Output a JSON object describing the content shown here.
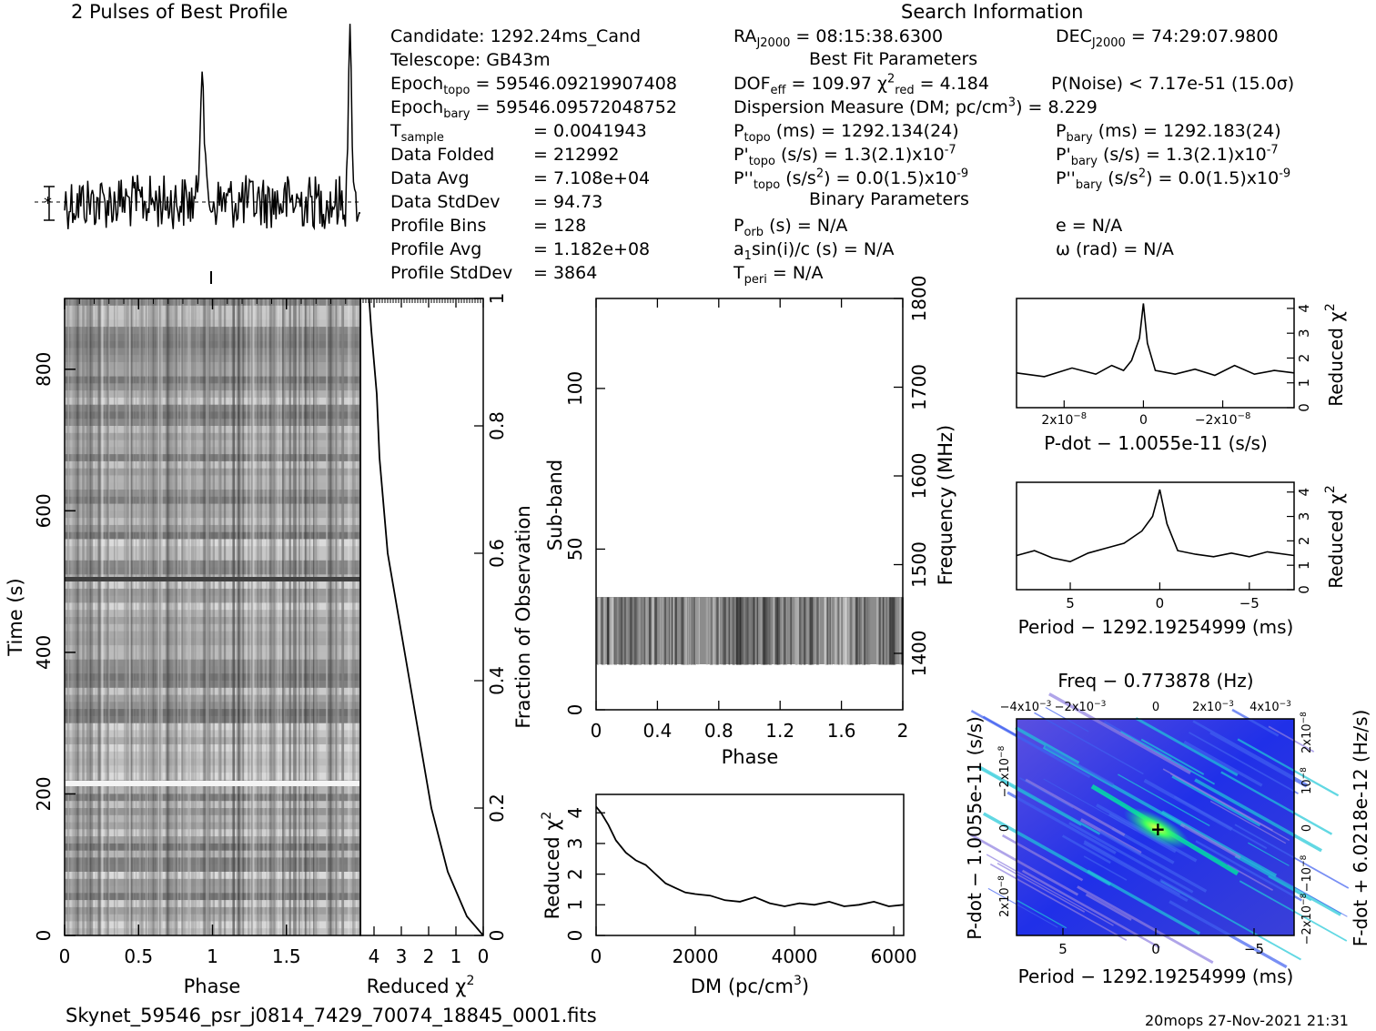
{
  "headers": {
    "profile_title": "2 Pulses of Best Profile",
    "search_title": "Search Information",
    "best_fit_title": "Best Fit Parameters",
    "binary_title": "Binary Parameters"
  },
  "info": {
    "candidate": "Candidate:  1292.24ms_Cand",
    "telescope": "Telescope:  GB43m",
    "epoch_topo_label": "Epoch",
    "epoch_topo_sub": "topo",
    "epoch_topo_value": " = 59546.09219907408",
    "epoch_bary_label": "Epoch",
    "epoch_bary_sub": "bary",
    "epoch_bary_value": " = 59546.09572048752",
    "tsample_label": "T",
    "tsample_sub": "sample",
    "tsample_value": "=   0.0041943",
    "data_folded_label": "Data Folded",
    "data_folded_value": "=   212992",
    "data_avg_label": "Data Avg",
    "data_avg_value": "=   7.108e+04",
    "data_std_label": "Data StdDev",
    "data_std_value": "=   94.73",
    "prof_bins_label": "Profile Bins",
    "prof_bins_value": "=   128",
    "prof_avg_label": "Profile Avg",
    "prof_avg_value": "=   1.182e+08",
    "prof_std_label": "Profile StdDev",
    "prof_std_value": "=   3864"
  },
  "search": {
    "ra_label": "RA",
    "ra_sub": "J2000",
    "ra_value": " = 08:15:38.6300",
    "dec_label": "DEC",
    "dec_sub": "J2000",
    "dec_value": " = 74:29:07.9800",
    "dof_label": "DOF",
    "dof_sub": "eff",
    "dof_value": " = 109.97  ",
    "chi_label": "χ",
    "chi_sup": "2",
    "chi_sub": "red",
    "chi_value": " = 4.184",
    "pnoise": "P(Noise) < 7.17e-51   (15.0σ)",
    "dm_text": "Dispersion Measure (DM; pc/cm",
    "dm_sup": "3",
    "dm_value": ") = 8.229",
    "ptopo_label": "P",
    "ptopo_sub": "topo",
    "ptopo_value": " (ms)  =   1292.134(24)",
    "pbary_label": "P",
    "pbary_sub": "bary",
    "pbary_value": " (ms)  =   1292.183(24)",
    "pdtopo_label": "P'",
    "pdtopo_sub": "topo",
    "pdtopo_value": " (s/s)  =   1.3(2.1)x10",
    "pdtopo_exp": "-7",
    "pdbary_label": "P'",
    "pdbary_sub": "bary",
    "pdbary_value": " (s/s)  =   1.3(2.1)x10",
    "pdbary_exp": "-7",
    "pddtopo_label": "P''",
    "pddtopo_sub": "topo",
    "pddtopo_value": " (s/s",
    "pddtopo_value2": ") = 0.0(1.5)x10",
    "pddtopo_exp": "-9",
    "pddbary_label": "P''",
    "pddbary_sub": "bary",
    "pddbary_value": " (s/s",
    "pddbary_value2": ") = 0.0(1.5)x10",
    "pddbary_exp": "-9",
    "sq_sup": "2",
    "porb_label": "P",
    "porb_sub": "orb",
    "porb_value": " (s) = N/A",
    "a1_label": "a",
    "a1_sub": "1",
    "a1_value": "sin(i)/c (s) = N/A",
    "tperi_label": "T",
    "tperi_sub": "peri",
    "tperi_value": " = N/A",
    "ecc": "e = N/A",
    "omega": "ω (rad) = N/A"
  },
  "footer": {
    "filename": "Skynet_59546_psr_j0814_7429_70074_18845_0001.fits",
    "stamp": "20mops 27-Nov-2021 21:31"
  },
  "colors": {
    "ink": "#000000",
    "dmap_bg": "#2a2ae0",
    "dmap_hot": "#00e8a0",
    "dmap_peak": "#e8ff40"
  },
  "chart_data": [
    {
      "id": "profile",
      "type": "line",
      "title": "2 Pulses of Best Profile",
      "x_range": [
        0,
        2
      ],
      "peaks_at_phase": [
        0.93,
        1.93
      ],
      "baseline_marker": "-*-"
    },
    {
      "id": "time-phase",
      "type": "heatmap",
      "xlabel": "Phase",
      "ylabel": "Time (s)",
      "xticks": [
        "0",
        "0.5",
        "1",
        "1.5"
      ],
      "yticks": [
        "0",
        "200",
        "400",
        "600",
        "800"
      ],
      "xlim": [
        0,
        2
      ],
      "ylim": [
        0,
        900
      ]
    },
    {
      "id": "time-chi2",
      "type": "line",
      "xlabel": "Reduced χ²",
      "xlabel_main": "Reduced χ",
      "xlabel_sup": "2",
      "xticks": [
        "4",
        "3",
        "2",
        "1",
        "0"
      ],
      "ylabel_right": "Fraction of Observation",
      "yticks_right": [
        "0",
        "0.2",
        "0.4",
        "0.6",
        "0.8",
        "1"
      ],
      "xlim": [
        4.5,
        0
      ],
      "points": [
        [
          0,
          0.0
        ],
        [
          0.6,
          0.03
        ],
        [
          0.9,
          0.06
        ],
        [
          1.3,
          0.1
        ],
        [
          1.6,
          0.15
        ],
        [
          1.9,
          0.2
        ],
        [
          2.1,
          0.25
        ],
        [
          2.3,
          0.3
        ],
        [
          2.5,
          0.35
        ],
        [
          2.7,
          0.4
        ],
        [
          2.9,
          0.45
        ],
        [
          3.1,
          0.5
        ],
        [
          3.3,
          0.55
        ],
        [
          3.5,
          0.6
        ],
        [
          3.6,
          0.65
        ],
        [
          3.7,
          0.7
        ],
        [
          3.8,
          0.75
        ],
        [
          3.85,
          0.8
        ],
        [
          3.9,
          0.85
        ],
        [
          4.0,
          0.9
        ],
        [
          4.1,
          0.95
        ],
        [
          4.18,
          1.0
        ]
      ]
    },
    {
      "id": "subband-phase",
      "type": "heatmap",
      "xlabel": "Phase",
      "ylabel": "Sub-band",
      "ylabel_right": "Frequency (MHz)",
      "xticks": [
        "0",
        "0.4",
        "0.8",
        "1.2",
        "1.6",
        "2"
      ],
      "yticks": [
        "0",
        "50",
        "100"
      ],
      "yticks_right": [
        "1400",
        "1500",
        "1600",
        "1700",
        "1800"
      ],
      "xlim": [
        0,
        2
      ],
      "ylim": [
        0,
        128
      ],
      "active_subbands": [
        14,
        35
      ]
    },
    {
      "id": "dm-chi2",
      "type": "line",
      "xlabel": "DM (pc/cm³)",
      "xlabel_main": "DM (pc/cm",
      "xlabel_sup": "3",
      "xlabel_end": ")",
      "ylabel": "Reduced χ²",
      "ylabel_main": "Reduced χ",
      "ylabel_sup": "2",
      "xticks": [
        "0",
        "2000",
        "4000",
        "6000"
      ],
      "yticks": [
        "0",
        "1",
        "2",
        "3",
        "4"
      ],
      "xlim": [
        0,
        6200
      ],
      "ylim": [
        0,
        4.6
      ],
      "points": [
        [
          0,
          4.2
        ],
        [
          100,
          4.0
        ],
        [
          250,
          3.6
        ],
        [
          400,
          3.1
        ],
        [
          600,
          2.7
        ],
        [
          800,
          2.45
        ],
        [
          1000,
          2.3
        ],
        [
          1200,
          2.0
        ],
        [
          1400,
          1.7
        ],
        [
          1600,
          1.55
        ],
        [
          1800,
          1.4
        ],
        [
          2000,
          1.35
        ],
        [
          2300,
          1.3
        ],
        [
          2600,
          1.15
        ],
        [
          2900,
          1.1
        ],
        [
          3200,
          1.25
        ],
        [
          3500,
          1.05
        ],
        [
          3800,
          0.95
        ],
        [
          4100,
          1.05
        ],
        [
          4400,
          1.0
        ],
        [
          4700,
          1.1
        ],
        [
          5000,
          0.95
        ],
        [
          5300,
          1.0
        ],
        [
          5600,
          1.1
        ],
        [
          5900,
          0.95
        ],
        [
          6200,
          1.0
        ]
      ]
    },
    {
      "id": "pdot-chi2",
      "type": "line",
      "xlabel": "P-dot − 1.0055e-11 (s/s)",
      "ylabel_right": "Reduced χ²",
      "ylabel_right_main": "Reduced χ",
      "ylabel_right_sup": "2",
      "xticks": [
        "2x10",
        "0",
        "−2x10"
      ],
      "xtick_exp": "−8",
      "yticks_right": [
        "0",
        "1",
        "2",
        "3",
        "4"
      ],
      "xlim": [
        3.2e-08,
        -3.8e-08
      ],
      "ylim": [
        0,
        4.4
      ],
      "points": [
        [
          3.2e-08,
          1.4
        ],
        [
          2.5e-08,
          1.25
        ],
        [
          1.8e-08,
          1.6
        ],
        [
          1.2e-08,
          1.35
        ],
        [
          8e-09,
          1.7
        ],
        [
          5e-09,
          1.5
        ],
        [
          3e-09,
          1.9
        ],
        [
          1e-09,
          2.8
        ],
        [
          0.0,
          4.2
        ],
        [
          -1e-09,
          2.6
        ],
        [
          -3e-09,
          1.5
        ],
        [
          -8e-09,
          1.35
        ],
        [
          -1.3e-08,
          1.55
        ],
        [
          -1.8e-08,
          1.3
        ],
        [
          -2.3e-08,
          1.7
        ],
        [
          -2.8e-08,
          1.35
        ],
        [
          -3.3e-08,
          1.5
        ],
        [
          -3.8e-08,
          1.4
        ]
      ]
    },
    {
      "id": "period-chi2",
      "type": "line",
      "xlabel": "Period − 1292.19254999 (ms)",
      "ylabel_right": "Reduced χ²",
      "ylabel_right_main": "Reduced χ",
      "ylabel_right_sup": "2",
      "xticks": [
        "5",
        "0",
        "−5"
      ],
      "yticks_right": [
        "0",
        "1",
        "2",
        "3",
        "4"
      ],
      "xlim": [
        8,
        -7.5
      ],
      "ylim": [
        0,
        4.4
      ],
      "points": [
        [
          8,
          1.4
        ],
        [
          7,
          1.6
        ],
        [
          6,
          1.3
        ],
        [
          5,
          1.15
        ],
        [
          4,
          1.5
        ],
        [
          3,
          1.7
        ],
        [
          2,
          1.9
        ],
        [
          1,
          2.4
        ],
        [
          0.4,
          3.0
        ],
        [
          0.0,
          4.1
        ],
        [
          -0.4,
          2.7
        ],
        [
          -1,
          1.6
        ],
        [
          -2,
          1.45
        ],
        [
          -3,
          1.35
        ],
        [
          -4,
          1.5
        ],
        [
          -5,
          1.35
        ],
        [
          -6,
          1.55
        ],
        [
          -7.5,
          1.4
        ]
      ]
    },
    {
      "id": "ppdot-map",
      "type": "heatmap",
      "title": "Freq − 0.773878 (Hz)",
      "xlabel": "Period − 1292.19254999 (ms)",
      "ylabel": "P-dot − 1.0055e-11 (s/s)",
      "ylabel_right": "F-dot + 6.0218e-12 (Hz/s)",
      "xticks": [
        "5",
        "0",
        "−5"
      ],
      "xticks_top": [
        "−4x10",
        "−2x10",
        "0",
        "2x10",
        "4x10"
      ],
      "xticks_top_exp": "−3",
      "yticks": [
        "−2x10",
        "0",
        "2x10"
      ],
      "ytick_exp": "−8",
      "yticks_right": [
        "−2x10",
        "−10",
        "0",
        "10",
        "2x10"
      ],
      "yticks_right_exp": "−8",
      "peak": [
        0,
        0
      ]
    }
  ]
}
